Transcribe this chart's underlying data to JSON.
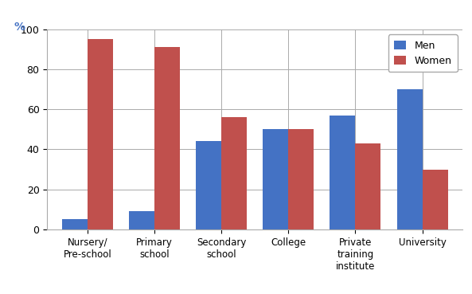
{
  "categories": [
    "Nursery/\nPre-school",
    "Primary\nschool",
    "Secondary\nschool",
    "College",
    "Private\ntraining\ninstitute",
    "University"
  ],
  "men_values": [
    5,
    9,
    44,
    50,
    57,
    70
  ],
  "women_values": [
    95,
    91,
    56,
    50,
    43,
    30
  ],
  "men_color": "#4472C4",
  "women_color": "#C0504D",
  "ylim": [
    0,
    100
  ],
  "yticks": [
    0,
    20,
    40,
    60,
    80,
    100
  ],
  "legend_labels": [
    "Men",
    "Women"
  ],
  "bar_width": 0.38,
  "background_color": "#FFFFFF",
  "grid_color": "#AAAAAA",
  "percent_label": "%"
}
